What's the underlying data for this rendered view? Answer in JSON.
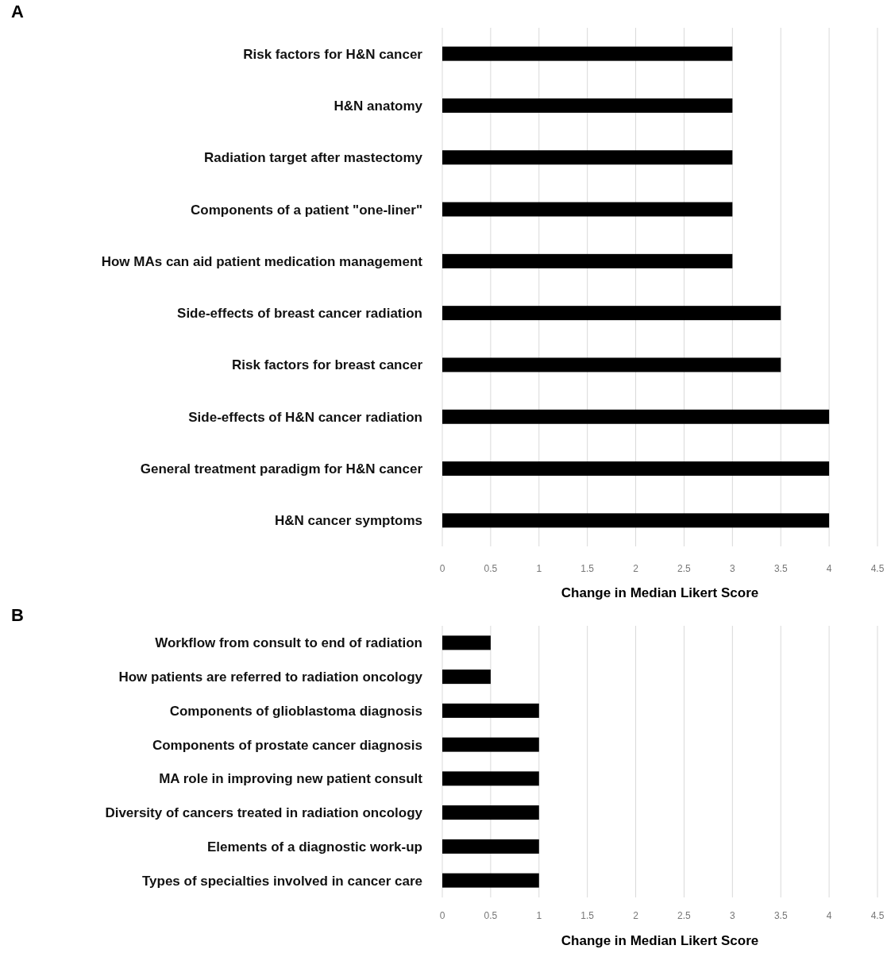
{
  "chart_data": [
    {
      "type": "bar",
      "title": "A",
      "orientation": "horizontal",
      "categories": [
        "Risk factors for H&N cancer",
        "H&N anatomy",
        "Radiation target after mastectomy",
        "Components of a patient \"one-liner\"",
        "How MAs can aid patient medication management",
        "Side-effects of breast cancer radiation",
        "Risk factors for breast cancer",
        "Side-effects of H&N cancer radiation",
        "General treatment paradigm for H&N cancer",
        "H&N cancer symptoms"
      ],
      "values": [
        3,
        3,
        3,
        3,
        3,
        3.5,
        3.5,
        4,
        4,
        4
      ],
      "color": "#000000",
      "xlim": [
        0,
        4.5
      ],
      "xticks": [
        0,
        0.5,
        1,
        1.5,
        2,
        2.5,
        3,
        3.5,
        4,
        4.5
      ],
      "xlabel": "Change in Median Likert Score",
      "grid": "x"
    },
    {
      "type": "bar",
      "title": "B",
      "orientation": "horizontal",
      "categories": [
        "Workflow from consult to end of radiation",
        "How patients are referred to radiation oncology",
        "Components of glioblastoma diagnosis",
        "Components of prostate cancer diagnosis",
        "MA role in improving new patient consult",
        "Diversity of cancers treated in radiation oncology",
        "Elements of a diagnostic work-up",
        "Types of specialties involved in cancer care"
      ],
      "values": [
        0.5,
        0.5,
        1,
        1,
        1,
        1,
        1,
        1
      ],
      "color": "#000000",
      "xlim": [
        0,
        4.5
      ],
      "xticks": [
        0,
        0.5,
        1,
        1.5,
        2,
        2.5,
        3,
        3.5,
        4,
        4.5
      ],
      "xlabel": "Change in Median Likert Score",
      "grid": "x"
    }
  ]
}
